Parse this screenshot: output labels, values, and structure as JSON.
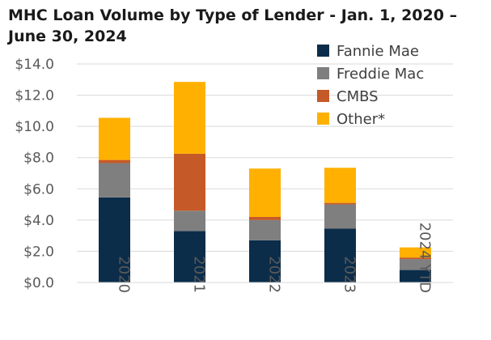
{
  "chart_data": {
    "type": "bar",
    "stacked": true,
    "title": "MHC Loan Volume by Type of Lender - Jan. 1, 2020 – June 30, 2024",
    "categories": [
      "2020",
      "2021",
      "2022",
      "2023",
      "2024 YTD"
    ],
    "series": [
      {
        "name": "Fannie Mae",
        "color": "#0b2d4a",
        "values": [
          5.45,
          3.3,
          2.7,
          3.45,
          0.8
        ]
      },
      {
        "name": "Freddie Mac",
        "color": "#7f7f7f",
        "values": [
          2.2,
          1.3,
          1.3,
          1.55,
          0.7
        ]
      },
      {
        "name": "CMBS",
        "color": "#c55a28",
        "values": [
          0.2,
          3.65,
          0.2,
          0.1,
          0.1
        ]
      },
      {
        "name": "Other*",
        "color": "#ffb000",
        "values": [
          2.7,
          4.6,
          3.1,
          2.25,
          0.65
        ]
      }
    ],
    "y_ticks": [
      "$0.0",
      "$2.0",
      "$4.0",
      "$6.0",
      "$8.0",
      "$10.0",
      "$12.0",
      "$14.0"
    ],
    "ylim": [
      0,
      14
    ],
    "grid": true,
    "legend_position": "top-right"
  }
}
